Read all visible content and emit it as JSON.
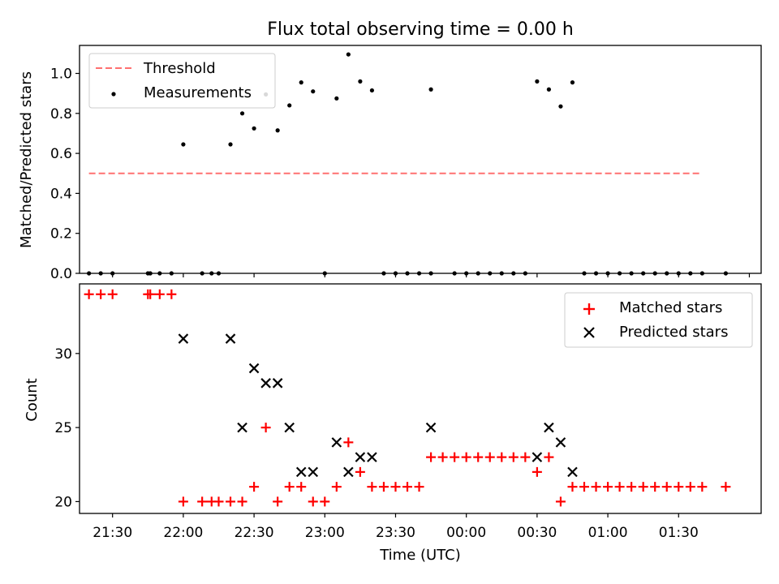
{
  "chart_data": [
    {
      "type": "scatter",
      "title": "Flux total observing time = 0.00 h",
      "xlabel": "",
      "ylabel": "Matched/Predicted stars",
      "xlim": [
        -44,
        245
      ],
      "ylim": [
        0,
        1.14
      ],
      "yticks": [
        0.0,
        0.2,
        0.4,
        0.6,
        0.8,
        1.0
      ],
      "ytick_labels": [
        "0.0",
        "0.2",
        "0.4",
        "0.6",
        "0.8",
        "1.0"
      ],
      "xtick_minutes": [
        -30,
        0,
        30,
        60,
        90,
        120,
        150,
        180,
        210,
        240
      ],
      "x_unit": "minutes after 22:00 UTC",
      "legend_position": "upper left",
      "series": [
        {
          "name": "Threshold",
          "style": "dashed-line",
          "color": "#ff7070",
          "points": [
            [
              -40,
              0.5
            ],
            [
              220,
              0.5
            ]
          ]
        },
        {
          "name": "Measurements",
          "style": "dot",
          "color": "#000000",
          "points": [
            [
              -40,
              0
            ],
            [
              -35,
              0
            ],
            [
              -30,
              0
            ],
            [
              -15,
              0
            ],
            [
              -14,
              0
            ],
            [
              -10,
              0
            ],
            [
              -5,
              0
            ],
            [
              0,
              0.645
            ],
            [
              8,
              0
            ],
            [
              12,
              0
            ],
            [
              15,
              0
            ],
            [
              20,
              0.645
            ],
            [
              25,
              0.8
            ],
            [
              30,
              0.725
            ],
            [
              35,
              0.895
            ],
            [
              40,
              0.715
            ],
            [
              45,
              0.84
            ],
            [
              50,
              0.955
            ],
            [
              55,
              0.91
            ],
            [
              60,
              0
            ],
            [
              65,
              0.875
            ],
            [
              70,
              1.095
            ],
            [
              75,
              0.96
            ],
            [
              80,
              0.915
            ],
            [
              85,
              0
            ],
            [
              90,
              0
            ],
            [
              95,
              0
            ],
            [
              100,
              0
            ],
            [
              105,
              0
            ],
            [
              105,
              0.92
            ],
            [
              115,
              0
            ],
            [
              120,
              0
            ],
            [
              125,
              0
            ],
            [
              130,
              0
            ],
            [
              135,
              0
            ],
            [
              140,
              0
            ],
            [
              145,
              0
            ],
            [
              150,
              0.96
            ],
            [
              155,
              0.92
            ],
            [
              160,
              0.835
            ],
            [
              165,
              0.955
            ],
            [
              170,
              0
            ],
            [
              175,
              0
            ],
            [
              180,
              0
            ],
            [
              185,
              0
            ],
            [
              190,
              0
            ],
            [
              195,
              0
            ],
            [
              200,
              0
            ],
            [
              205,
              0
            ],
            [
              210,
              0
            ],
            [
              215,
              0
            ],
            [
              220,
              0
            ],
            [
              230,
              0
            ]
          ]
        }
      ]
    },
    {
      "type": "scatter",
      "title": "",
      "xlabel": "Time (UTC)",
      "ylabel": "Count",
      "xlim": [
        -44,
        245
      ],
      "ylim": [
        19.2,
        34.7
      ],
      "yticks": [
        20,
        25,
        30
      ],
      "ytick_labels": [
        "20",
        "25",
        "30"
      ],
      "xtick_minutes": [
        -30,
        0,
        30,
        60,
        90,
        120,
        150,
        180,
        210
      ],
      "xtick_labels": [
        "21:30",
        "22:00",
        "22:30",
        "23:00",
        "23:30",
        "00:00",
        "00:30",
        "01:00",
        "01:30"
      ],
      "x_unit": "minutes after 22:00 UTC",
      "legend_position": "upper right",
      "series": [
        {
          "name": "Matched stars",
          "style": "plus",
          "color": "#ff0000",
          "points": [
            [
              -40,
              34
            ],
            [
              -35,
              34
            ],
            [
              -30,
              34
            ],
            [
              -15,
              34
            ],
            [
              -14,
              34
            ],
            [
              -10,
              34
            ],
            [
              -5,
              34
            ],
            [
              0,
              20
            ],
            [
              8,
              20
            ],
            [
              12,
              20
            ],
            [
              15,
              20
            ],
            [
              20,
              20
            ],
            [
              25,
              20
            ],
            [
              30,
              21
            ],
            [
              35,
              25
            ],
            [
              40,
              20
            ],
            [
              45,
              21
            ],
            [
              50,
              21
            ],
            [
              55,
              20
            ],
            [
              60,
              20
            ],
            [
              65,
              21
            ],
            [
              70,
              24
            ],
            [
              75,
              22
            ],
            [
              80,
              21
            ],
            [
              85,
              21
            ],
            [
              90,
              21
            ],
            [
              95,
              21
            ],
            [
              100,
              21
            ],
            [
              105,
              23
            ],
            [
              110,
              23
            ],
            [
              115,
              23
            ],
            [
              120,
              23
            ],
            [
              125,
              23
            ],
            [
              130,
              23
            ],
            [
              135,
              23
            ],
            [
              140,
              23
            ],
            [
              145,
              23
            ],
            [
              150,
              22
            ],
            [
              155,
              23
            ],
            [
              160,
              20
            ],
            [
              165,
              21
            ],
            [
              170,
              21
            ],
            [
              175,
              21
            ],
            [
              180,
              21
            ],
            [
              185,
              21
            ],
            [
              190,
              21
            ],
            [
              195,
              21
            ],
            [
              200,
              21
            ],
            [
              205,
              21
            ],
            [
              210,
              21
            ],
            [
              215,
              21
            ],
            [
              220,
              21
            ],
            [
              230,
              21
            ]
          ]
        },
        {
          "name": "Predicted stars",
          "style": "x",
          "color": "#000000",
          "points": [
            [
              0,
              31
            ],
            [
              20,
              31
            ],
            [
              25,
              25
            ],
            [
              30,
              29
            ],
            [
              35,
              28
            ],
            [
              40,
              28
            ],
            [
              45,
              25
            ],
            [
              50,
              22
            ],
            [
              55,
              22
            ],
            [
              65,
              24
            ],
            [
              70,
              22
            ],
            [
              75,
              23
            ],
            [
              80,
              23
            ],
            [
              105,
              25
            ],
            [
              150,
              23
            ],
            [
              155,
              25
            ],
            [
              160,
              24
            ],
            [
              165,
              22
            ]
          ]
        }
      ]
    }
  ]
}
